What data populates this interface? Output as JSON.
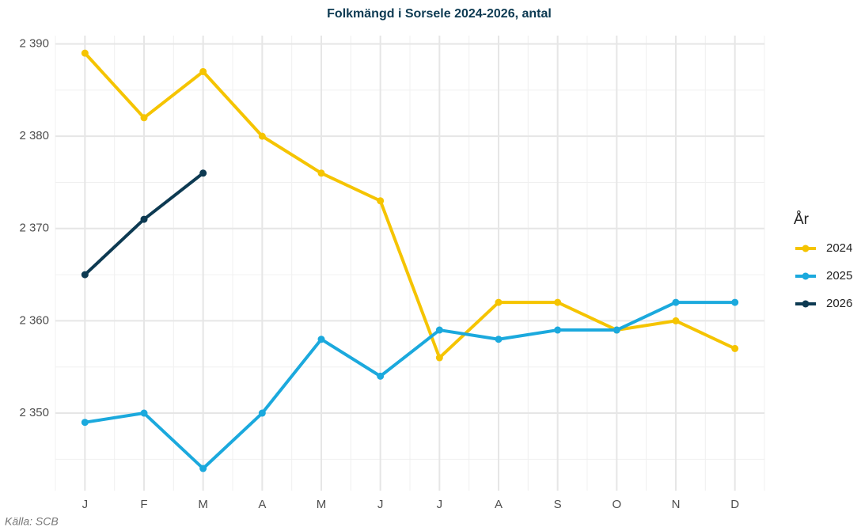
{
  "chart_data": {
    "type": "line",
    "title": "Folkmängd i Sorsele 2024-2026, antal",
    "caption": "Källa: SCB",
    "legend_title": "År",
    "categories": [
      "J",
      "F",
      "M",
      "A",
      "M",
      "J",
      "J",
      "A",
      "S",
      "O",
      "N",
      "D"
    ],
    "series": [
      {
        "name": "2024",
        "color": "#f5c400",
        "values": [
          2389,
          2382,
          2387,
          2380,
          2376,
          2373,
          2356,
          2362,
          2362,
          2359,
          2360,
          2357
        ]
      },
      {
        "name": "2025",
        "color": "#1ba9dd",
        "values": [
          2349,
          2350,
          2344,
          2350,
          2358,
          2354,
          2359,
          2358,
          2359,
          2359,
          2362,
          2362
        ]
      },
      {
        "name": "2026",
        "color": "#0d3a52",
        "values": [
          2365,
          2371,
          2376,
          null,
          null,
          null,
          null,
          null,
          null,
          null,
          null,
          null
        ]
      }
    ],
    "ylim": [
      2341.6,
      2390.9
    ],
    "yticks": [
      {
        "value": 2350,
        "label": "2 350"
      },
      {
        "value": 2360,
        "label": "2 360"
      },
      {
        "value": 2370,
        "label": "2 370"
      },
      {
        "value": 2380,
        "label": "2 380"
      },
      {
        "value": 2390,
        "label": "2 390"
      }
    ],
    "grid": true,
    "legend": "right"
  }
}
